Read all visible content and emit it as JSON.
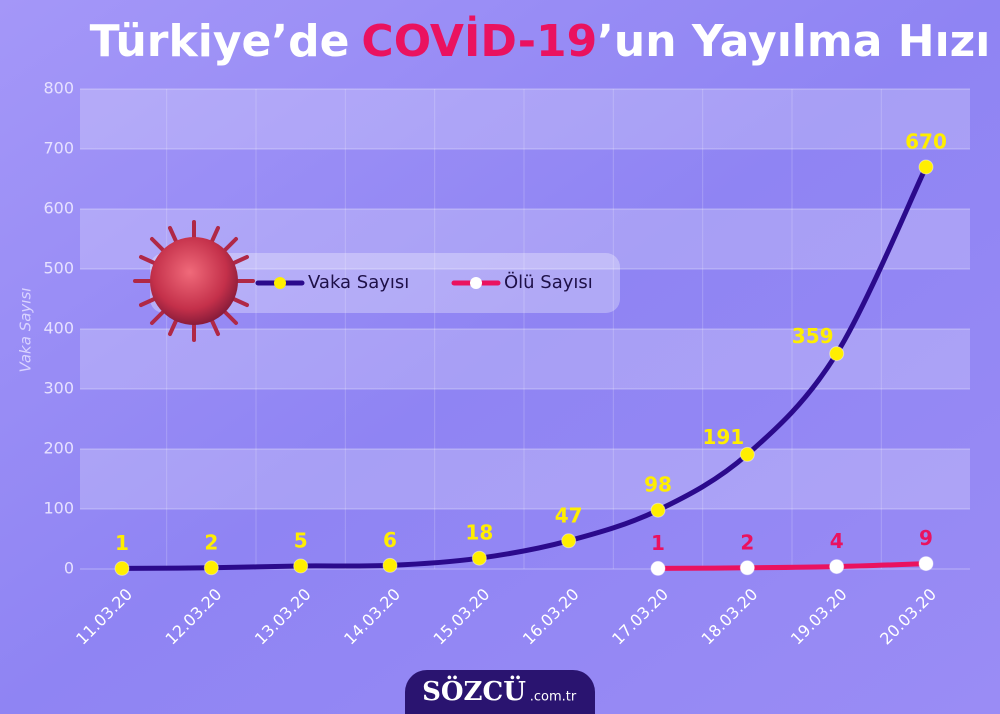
{
  "chart_data": {
    "type": "line",
    "title": [
      "Türkiye’de",
      "COVİD-19",
      "’un Yayılma Hızı"
    ],
    "ylabel": "Vaka Sayısı",
    "categories": [
      "11.03.20",
      "12.03.20",
      "13.03.20",
      "14.03.20",
      "15.03.20",
      "16.03.20",
      "17.03.20",
      "18.03.20",
      "19.03.20",
      "20.03.20"
    ],
    "series": [
      {
        "name": "Vaka Sayısı",
        "color": "#2b0a8c",
        "marker_color": "#ffee00",
        "label_color": "#ffee00",
        "values": [
          1,
          2,
          5,
          6,
          18,
          47,
          98,
          191,
          359,
          670
        ]
      },
      {
        "name": "Ölü Sayısı",
        "color": "#ea125f",
        "marker_color": "#ffffff",
        "label_color": "#ea125f",
        "values": [
          null,
          null,
          null,
          null,
          null,
          null,
          1,
          2,
          4,
          9
        ]
      }
    ],
    "ylim": [
      0,
      800
    ],
    "yticks": [
      0,
      100,
      200,
      300,
      400,
      500,
      600,
      700,
      800
    ],
    "grid": true,
    "footer": {
      "brand": "SÖZCÜ",
      "domain": ".com.tr"
    }
  }
}
